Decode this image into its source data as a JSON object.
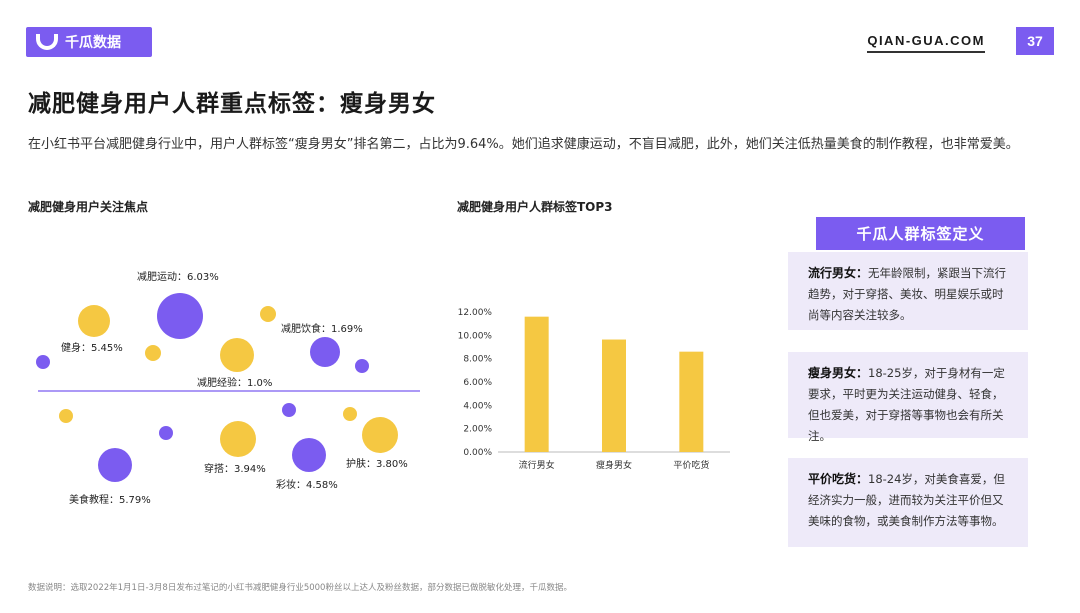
{
  "header": {
    "logo_text": "千瓜数据",
    "site": "QIAN-GUA.COM",
    "page_number": "37"
  },
  "title": "减肥健身用户人群重点标签：瘦身男女",
  "description": "在小红书平台减肥健身行业中，用户人群标签“瘦身男女”排名第二，占比为9.64%。她们追求健康运动，不盲目减肥，此外，她们关注低热量美食的制作教程，也非常爱美。",
  "bubble_section_title": "减肥健身用户关注焦点",
  "bar_section_title": "减肥健身用户人群标签TOP3",
  "definition_title": "千瓜人群标签定义",
  "definitions": [
    {
      "term": "流行男女：",
      "text": "无年龄限制，紧跟当下流行趋势，对于穿搭、美妆、明星娱乐或时尚等内容关注较多。"
    },
    {
      "term": "瘦身男女：",
      "text": "18-25岁，对于身材有一定要求，平时更为关注运动健身、轻食，但也爱美，对于穿搭等事物也会有所关注。"
    },
    {
      "term": "平价吃货：",
      "text": "18-24岁，对美食喜爱，但经济实力一般，进而较为关注平价但又美味的食物，或美食制作方法等事物。"
    }
  ],
  "footnote": "数据说明：选取2022年1月1日-3月8日发布过笔记的小红书减肥健身行业5000粉丝以上达人及粉丝数据，部分数据已做脱敏化处理，千瓜数据。",
  "colors": {
    "accent": "#7b5cf0",
    "yellow": "#f5c842",
    "light_purple": "#eeeaf9"
  },
  "chart_data": [
    {
      "type": "scatter",
      "title": "减肥健身用户关注焦点",
      "labeled_points": [
        {
          "label": "减肥运动：6.03%",
          "value": 6.03
        },
        {
          "label": "健身：5.45%",
          "value": 5.45
        },
        {
          "label": "减肥饮食：1.69%",
          "value": 1.69
        },
        {
          "label": "减肥经验：1.0%",
          "value": 1.0
        },
        {
          "label": "穿搭：3.94%",
          "value": 3.94
        },
        {
          "label": "护肤：3.80%",
          "value": 3.8
        },
        {
          "label": "彩妆：4.58%",
          "value": 4.58
        },
        {
          "label": "美食教程：5.79%",
          "value": 5.79
        }
      ]
    },
    {
      "type": "bar",
      "title": "减肥健身用户人群标签TOP3",
      "categories": [
        "流行男女",
        "瘦身男女",
        "平价吃货"
      ],
      "values": [
        11.6,
        9.64,
        8.6
      ],
      "yticks": [
        "0.00%",
        "2.00%",
        "4.00%",
        "6.00%",
        "8.00%",
        "10.00%",
        "12.00%"
      ],
      "ylim": [
        0,
        12
      ],
      "color": "#f5c842"
    }
  ]
}
